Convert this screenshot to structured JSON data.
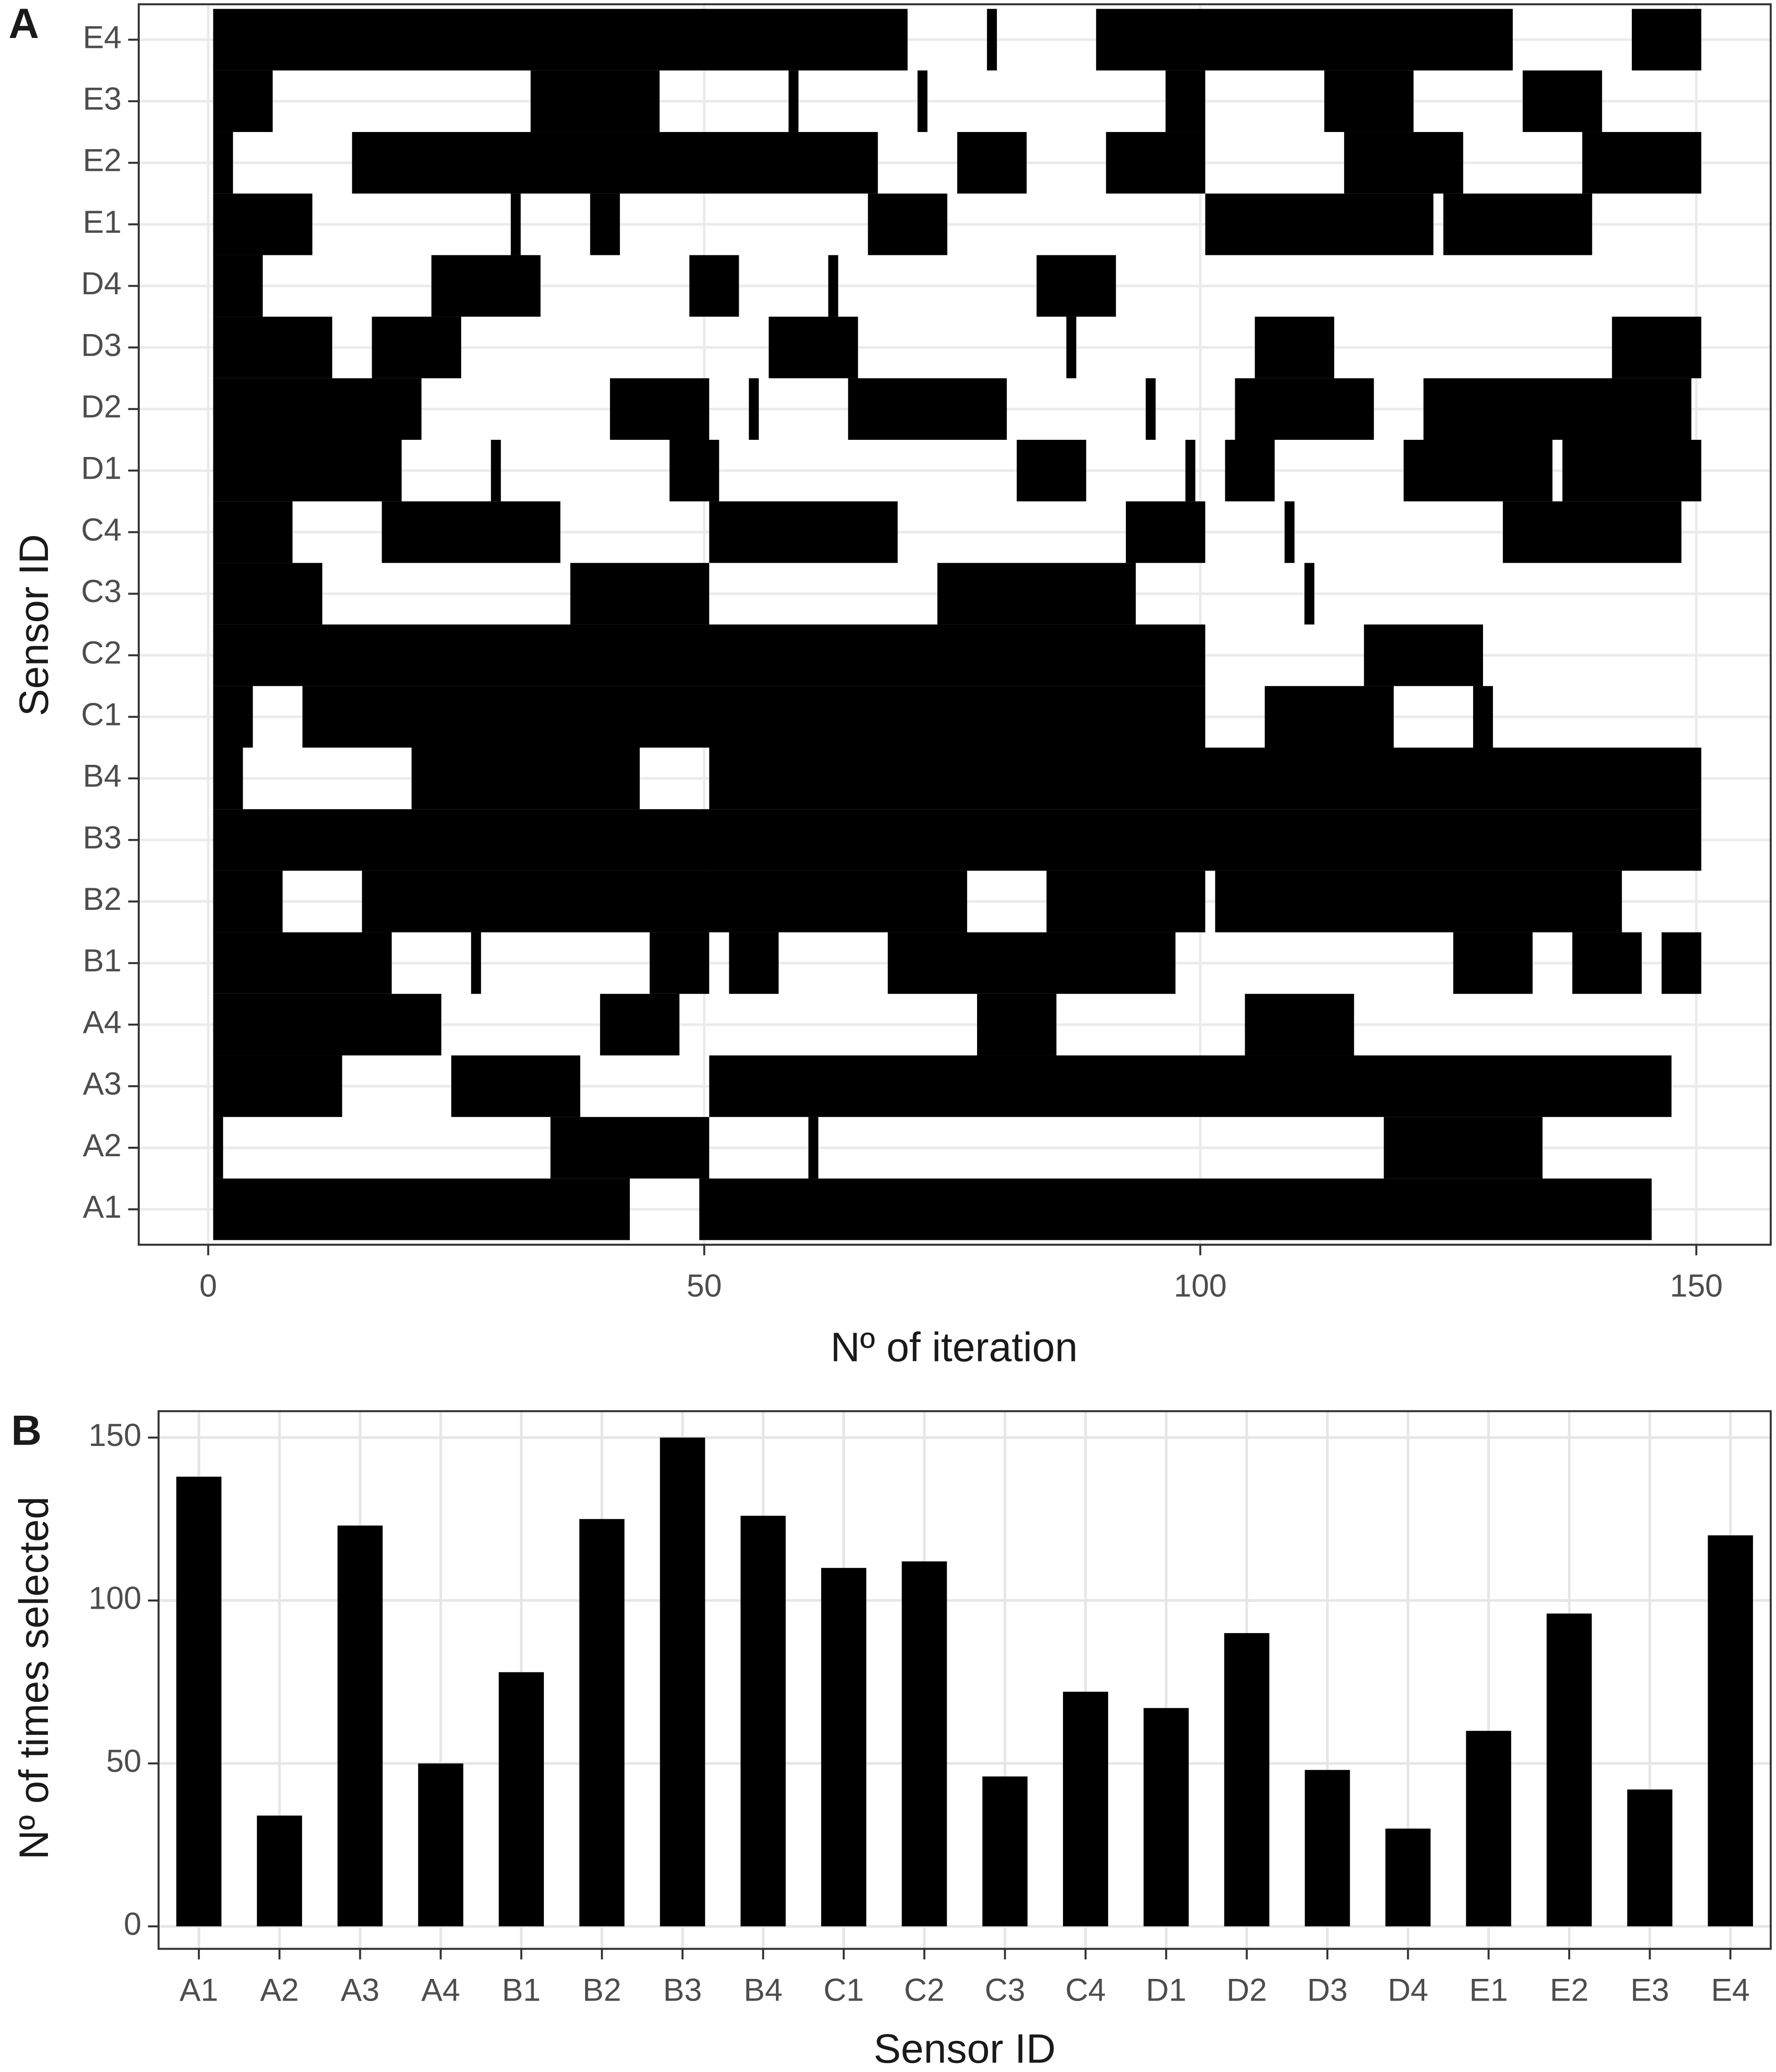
{
  "chart_data": [
    {
      "type": "tile",
      "panel_label": "A",
      "x_label": "Nº of iteration",
      "y_label": "Sensor ID",
      "categories": [
        "A1",
        "A2",
        "A3",
        "A4",
        "B1",
        "B2",
        "B3",
        "B4",
        "C1",
        "C2",
        "C3",
        "C4",
        "D1",
        "D2",
        "D3",
        "D4",
        "E1",
        "E2",
        "E3",
        "E4"
      ],
      "intervals": [
        [
          [
            1,
            42
          ],
          [
            50,
            145
          ]
        ],
        [
          [
            1,
            1
          ],
          [
            35,
            50
          ],
          [
            61,
            61
          ],
          [
            119,
            134
          ]
        ],
        [
          [
            1,
            13
          ],
          [
            25,
            37
          ],
          [
            51,
            147
          ]
        ],
        [
          [
            1,
            23
          ],
          [
            40,
            47
          ],
          [
            78,
            85
          ],
          [
            105,
            115
          ]
        ],
        [
          [
            1,
            18
          ],
          [
            27,
            27
          ],
          [
            45,
            50
          ],
          [
            53,
            57
          ],
          [
            69,
            97
          ],
          [
            126,
            133
          ],
          [
            138,
            144
          ],
          [
            147,
            150
          ]
        ],
        [
          [
            1,
            7
          ],
          [
            16,
            76
          ],
          [
            85,
            100
          ],
          [
            102,
            142
          ]
        ],
        [
          [
            1,
            150
          ]
        ],
        [
          [
            1,
            3
          ],
          [
            21,
            43
          ],
          [
            51,
            150
          ]
        ],
        [
          [
            1,
            4
          ],
          [
            10,
            100
          ],
          [
            107,
            119
          ],
          [
            128,
            129
          ]
        ],
        [
          [
            1,
            100
          ],
          [
            117,
            128
          ]
        ],
        [
          [
            1,
            11
          ],
          [
            37,
            50
          ],
          [
            74,
            93
          ],
          [
            111,
            111
          ]
        ],
        [
          [
            1,
            8
          ],
          [
            18,
            35
          ],
          [
            51,
            69
          ],
          [
            93,
            100
          ],
          [
            109,
            109
          ],
          [
            131,
            148
          ]
        ],
        [
          [
            1,
            19
          ],
          [
            29,
            29
          ],
          [
            47,
            51
          ],
          [
            82,
            88
          ],
          [
            99,
            99
          ],
          [
            103,
            107
          ],
          [
            121,
            135
          ],
          [
            137,
            150
          ]
        ],
        [
          [
            1,
            21
          ],
          [
            41,
            50
          ],
          [
            55,
            55
          ],
          [
            65,
            80
          ],
          [
            95,
            95
          ],
          [
            104,
            117
          ],
          [
            123,
            149
          ]
        ],
        [
          [
            1,
            12
          ],
          [
            17,
            25
          ],
          [
            57,
            65
          ],
          [
            87,
            87
          ],
          [
            106,
            113
          ],
          [
            142,
            150
          ]
        ],
        [
          [
            1,
            5
          ],
          [
            23,
            33
          ],
          [
            49,
            53
          ],
          [
            63,
            63
          ],
          [
            84,
            91
          ]
        ],
        [
          [
            1,
            10
          ],
          [
            31,
            31
          ],
          [
            39,
            41
          ],
          [
            67,
            74
          ],
          [
            101,
            123
          ],
          [
            125,
            139
          ]
        ],
        [
          [
            1,
            2
          ],
          [
            15,
            67
          ],
          [
            76,
            82
          ],
          [
            91,
            100
          ],
          [
            115,
            126
          ],
          [
            139,
            150
          ]
        ],
        [
          [
            1,
            6
          ],
          [
            33,
            45
          ],
          [
            59,
            59
          ],
          [
            72,
            72
          ],
          [
            97,
            100
          ],
          [
            113,
            121
          ],
          [
            133,
            140
          ]
        ],
        [
          [
            1,
            70
          ],
          [
            79,
            79
          ],
          [
            90,
            131
          ],
          [
            144,
            150
          ]
        ]
      ],
      "color": "#000000",
      "xlim": [
        -7,
        157.5
      ],
      "xticks": [
        0,
        50,
        100,
        150
      ],
      "grid": true
    },
    {
      "type": "bar",
      "panel_label": "B",
      "x_label": "Sensor ID",
      "y_label": "Nº of times selected",
      "categories": [
        "A1",
        "A2",
        "A3",
        "A4",
        "B1",
        "B2",
        "B3",
        "B4",
        "C1",
        "C2",
        "C3",
        "C4",
        "D1",
        "D2",
        "D3",
        "D4",
        "E1",
        "E2",
        "E3",
        "E4"
      ],
      "values": [
        138,
        34,
        123,
        50,
        78,
        125,
        150,
        126,
        110,
        112,
        46,
        72,
        67,
        90,
        48,
        30,
        60,
        96,
        42,
        120
      ],
      "color": "#000000",
      "ylim": [
        -6.9,
        158.1
      ],
      "yticks": [
        0,
        50,
        100,
        150
      ],
      "grid": true
    }
  ]
}
